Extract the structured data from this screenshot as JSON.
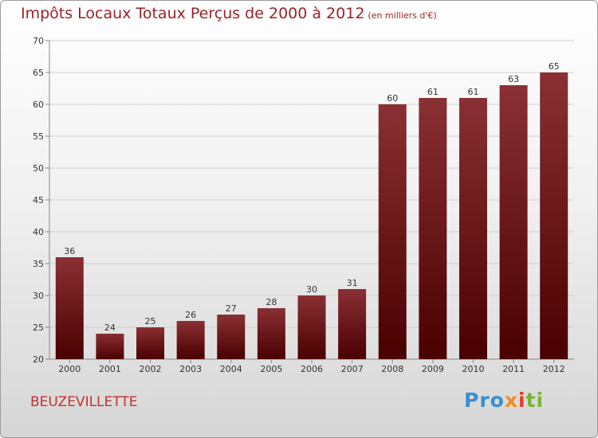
{
  "header": {
    "title": "Impôts Locaux Totaux Perçus de 2000 à 2012",
    "unit": "(en milliers d'€)"
  },
  "footer": {
    "place": "BEUZEVILLETTE",
    "logo": [
      "Pro",
      "x",
      "i",
      "ti"
    ]
  },
  "colors": {
    "title": "#9b2226",
    "bar_top": "#8a3034",
    "bar_bottom": "#4a0000",
    "place": "#c0322d"
  },
  "chart_data": {
    "type": "bar",
    "categories": [
      "2000",
      "2001",
      "2002",
      "2003",
      "2004",
      "2005",
      "2006",
      "2007",
      "2008",
      "2009",
      "2010",
      "2011",
      "2012"
    ],
    "values": [
      36,
      24,
      25,
      26,
      27,
      28,
      30,
      31,
      60,
      61,
      61,
      63,
      65
    ],
    "title": "Impôts Locaux Totaux Perçus de 2000 à 2012",
    "xlabel": "",
    "ylabel": "",
    "ylim": [
      20,
      70
    ],
    "yticks": [
      20,
      25,
      30,
      35,
      40,
      45,
      50,
      55,
      60,
      65,
      70
    ],
    "grid": true,
    "data_labels": true
  }
}
